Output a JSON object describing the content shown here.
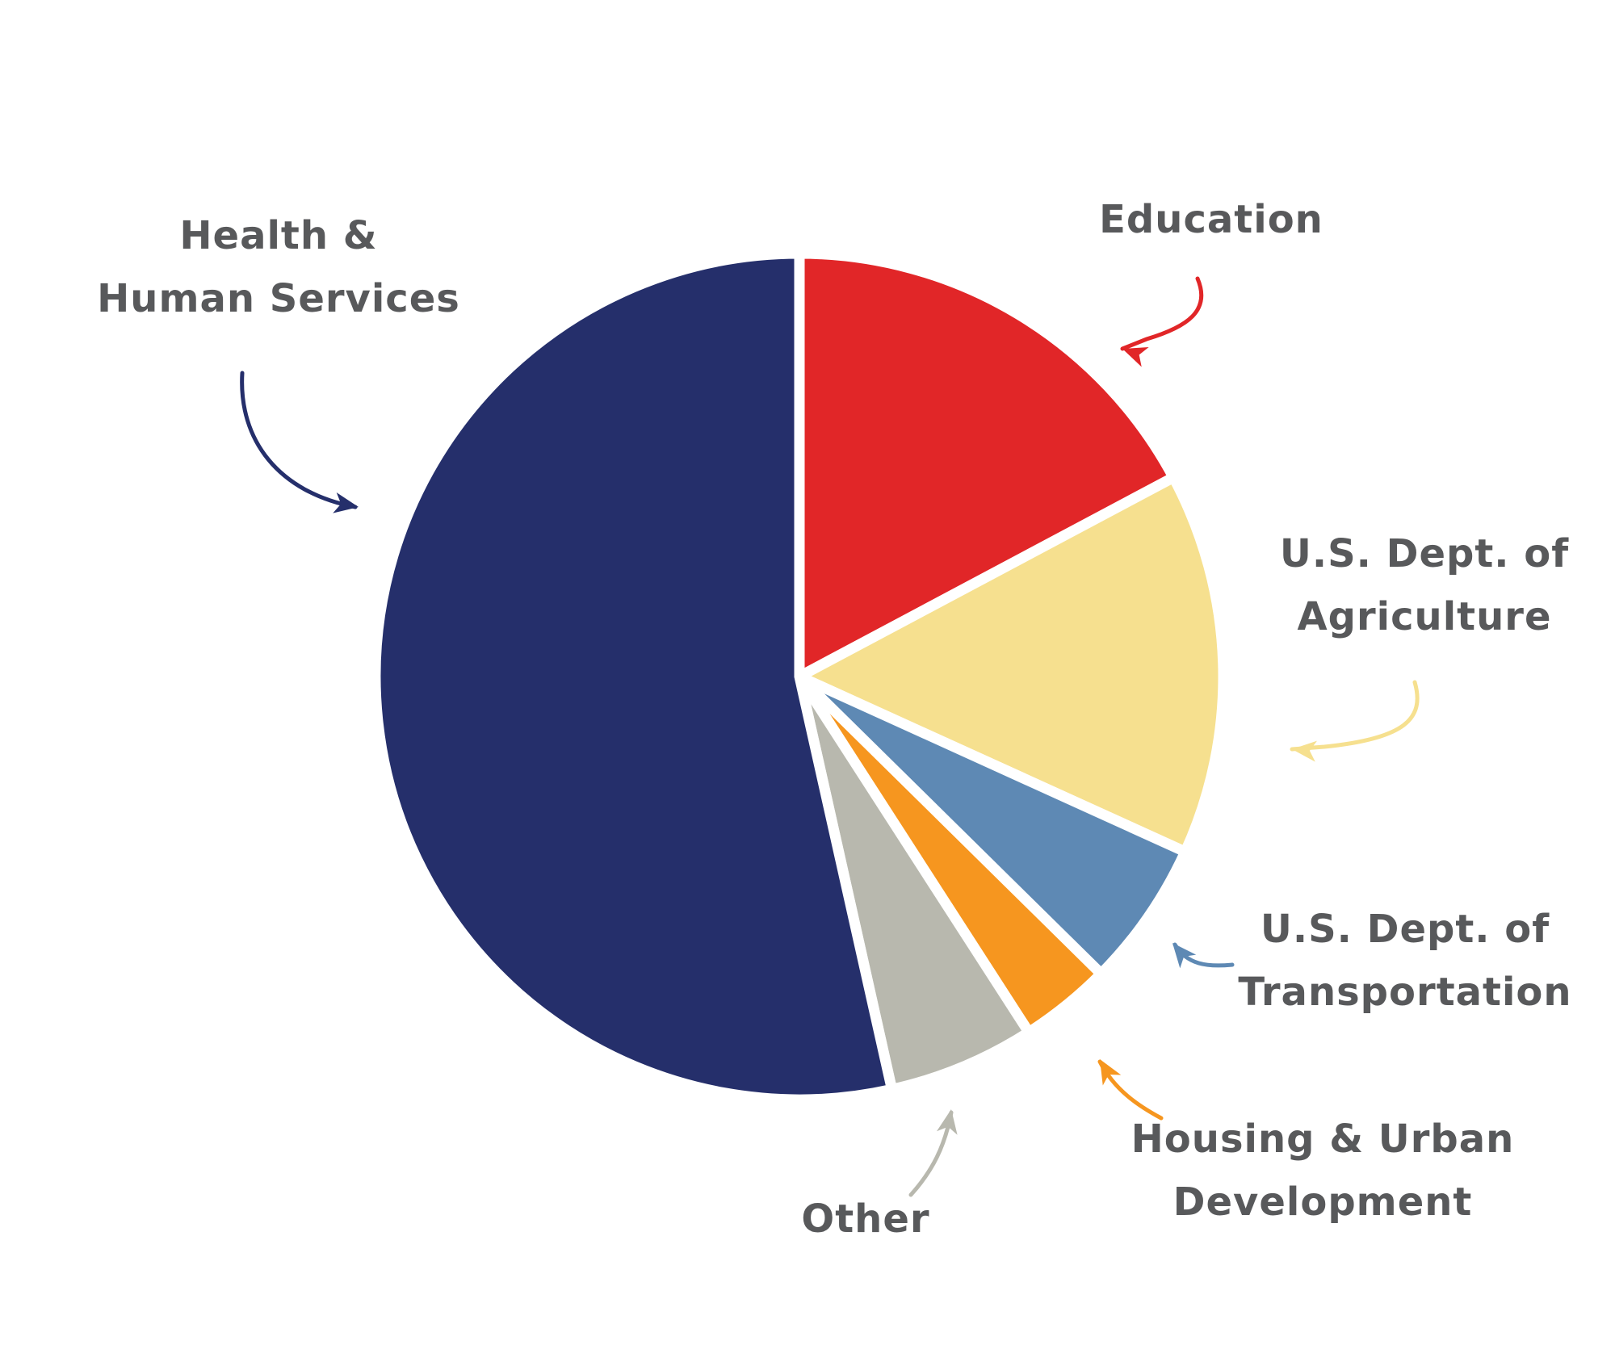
{
  "chart_data": {
    "type": "pie",
    "title": "",
    "start_angle_deg": 0,
    "direction": "clockwise",
    "slices": [
      {
        "name": "Education",
        "value": 17.2,
        "color": "#e12628",
        "label_lines": [
          "Education"
        ]
      },
      {
        "name": "U.S. Dept. of Agriculture",
        "value": 14.6,
        "color": "#f6e08f",
        "label_lines": [
          "U.S. Dept. of",
          "Agriculture"
        ]
      },
      {
        "name": "U.S. Dept. of Transportation",
        "value": 5.6,
        "color": "#5e89b4",
        "label_lines": [
          "U.S. Dept. of",
          "Transportation"
        ]
      },
      {
        "name": "Housing & Urban Development",
        "value": 3.5,
        "color": "#f6961f",
        "label_lines": [
          "Housing & Urban",
          "Development"
        ]
      },
      {
        "name": "Other",
        "value": 5.6,
        "color": "#b8b8ae",
        "label_lines": [
          "Other"
        ]
      },
      {
        "name": "Health & Human Services",
        "value": 53.5,
        "color": "#252f6b",
        "label_lines": [
          "Health &",
          "Human Services"
        ]
      }
    ]
  }
}
